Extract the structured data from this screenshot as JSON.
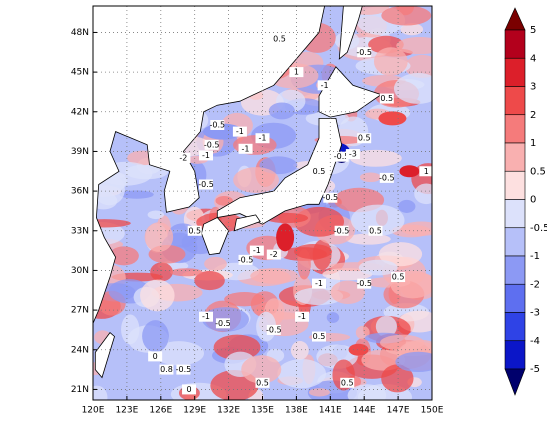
{
  "map": {
    "xlim": [
      120,
      150
    ],
    "ylim": [
      20.2,
      50
    ],
    "xticks": [
      {
        "value": 120,
        "label": "120E"
      },
      {
        "value": 123,
        "label": "123E"
      },
      {
        "value": 126,
        "label": "126E"
      },
      {
        "value": 129,
        "label": "129E"
      },
      {
        "value": 132,
        "label": "132E"
      },
      {
        "value": 135,
        "label": "135E"
      },
      {
        "value": 138,
        "label": "138E"
      },
      {
        "value": 141,
        "label": "141E"
      },
      {
        "value": 144,
        "label": "144E"
      },
      {
        "value": 147,
        "label": "147E"
      },
      {
        "value": 150,
        "label": "150E"
      }
    ],
    "yticks": [
      {
        "value": 21,
        "label": "21N"
      },
      {
        "value": 24,
        "label": "24N"
      },
      {
        "value": 27,
        "label": "27N"
      },
      {
        "value": 30,
        "label": "30N"
      },
      {
        "value": 33,
        "label": "33N"
      },
      {
        "value": 36,
        "label": "36N"
      },
      {
        "value": 39,
        "label": "39N"
      },
      {
        "value": 42,
        "label": "42N"
      },
      {
        "value": 45,
        "label": "45N"
      },
      {
        "value": 48,
        "label": "48N"
      }
    ],
    "contour_labels": [
      "0.5",
      "1",
      "-0.5",
      "-1",
      "0.5",
      "-0.5",
      "-1",
      "-1",
      "-0.5",
      "-1",
      "-2",
      "-1",
      "0.5",
      "-0.5",
      "-3",
      "-0.5",
      "1",
      "0.5",
      "-0.5",
      "-0.5",
      "0.5",
      "-2",
      "-1",
      "-0.5",
      "-1",
      "-0.5",
      "0.5",
      "-1",
      "-1",
      "-0.5",
      "0.5",
      "-0.5",
      "0",
      "0.8",
      "-0.5",
      "0.5",
      "0.5",
      "0",
      "0.5",
      "-0.5"
    ]
  },
  "colorbar": {
    "levels": [
      5,
      4,
      3,
      2,
      1,
      0.5,
      0,
      -0.5,
      -1,
      -2,
      -3,
      -4,
      -5
    ],
    "colors": [
      "#7a0000",
      "#b3001c",
      "#dc1f2a",
      "#ee4a4a",
      "#f57b7b",
      "#f9b0b0",
      "#fde0e0",
      "#dce1fb",
      "#b6c0f9",
      "#8c99f4",
      "#5e6ff0",
      "#2f43e6",
      "#0b16c8",
      "#00006c"
    ]
  }
}
